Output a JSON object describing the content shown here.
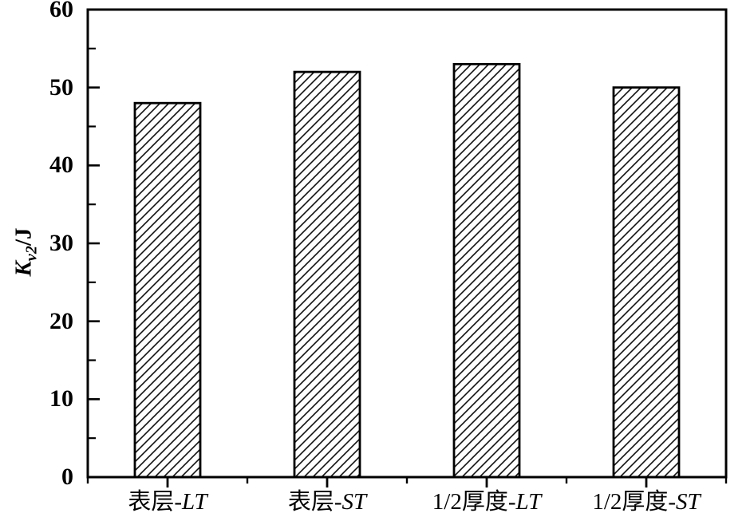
{
  "chart_data": {
    "type": "bar",
    "title": "",
    "categories": [
      "表层-LT",
      "表层-ST",
      "1/2厚度-LT",
      "1/2厚度-ST"
    ],
    "categories_parts": [
      {
        "text": "表层-",
        "italic": "LT"
      },
      {
        "text": "表层-",
        "italic": "ST"
      },
      {
        "text": "1/2厚度-",
        "italic": "LT"
      },
      {
        "text": "1/2厚度-",
        "italic": "ST"
      }
    ],
    "values": [
      48,
      52,
      53,
      50
    ],
    "xlabel": "",
    "ylabel": "Kv2/J",
    "ylabel_parts": {
      "main": "K",
      "sub": "v2",
      "unit": "/J"
    },
    "ylim": [
      0,
      60
    ],
    "ytick_major": [
      0,
      10,
      20,
      30,
      40,
      50,
      60
    ],
    "ytick_minor": [
      5,
      15,
      25,
      35,
      45,
      55
    ],
    "grid": false,
    "legend": "none",
    "bar_hatch": "diagonal-forward",
    "bar_fill": "#ffffff",
    "hatch_color": "#111111",
    "line_color": "#000000",
    "background": "#ffffff"
  }
}
